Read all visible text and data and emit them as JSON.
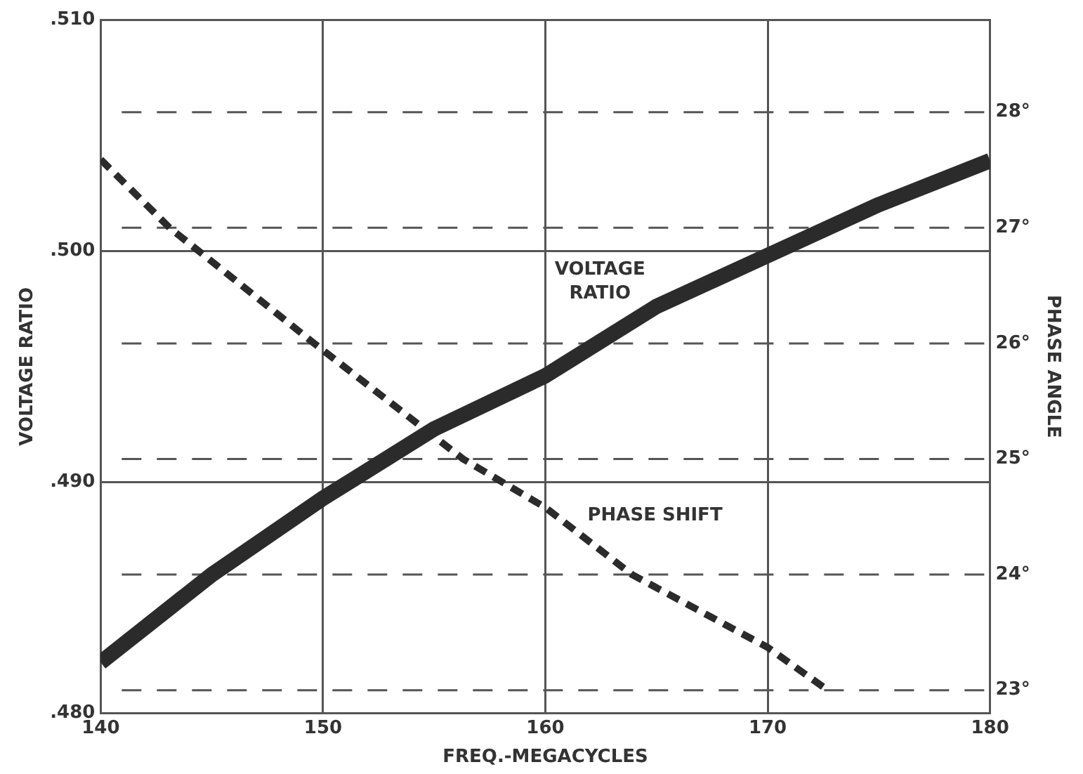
{
  "chart_data": {
    "type": "line",
    "xlabel": "FREQ.-MEGACYCLES",
    "ylabel": "VOLTAGE RATIO",
    "y2label": "PHASE ANGLE",
    "series": [
      {
        "name": "VOLTAGE RATIO",
        "color": "#2b2b2b",
        "x": [
          140,
          145,
          150,
          155,
          160,
          165,
          170,
          175,
          180
        ],
        "values": [
          0.4822,
          0.486,
          0.4893,
          0.4923,
          0.4946,
          0.4976,
          0.4998,
          0.502,
          0.5039
        ],
        "line_style": "solid"
      },
      {
        "name": "PHASE SHIFT",
        "color": "#2b2b2b",
        "axis": "y2",
        "x": [
          140,
          143.1,
          149.6,
          156.3,
          160,
          163.9,
          170,
          172.7
        ],
        "values": [
          27.59,
          27,
          26,
          25,
          24.58,
          24,
          23.37,
          23.0
        ],
        "line_style": "dashed"
      }
    ],
    "xlim": [
      140,
      180
    ],
    "xticks": [
      140,
      150,
      160,
      170,
      180
    ],
    "ylim": [
      0.48,
      0.51
    ],
    "yticks": [
      {
        "value": 0.48,
        "label": ".480"
      },
      {
        "value": 0.49,
        "label": ".490"
      },
      {
        "value": 0.5,
        "label": ".500"
      },
      {
        "value": 0.51,
        "label": ".510"
      }
    ],
    "y2lim": [
      22.8,
      28.8
    ],
    "y2ticks": [
      {
        "value": 23,
        "label": "23°"
      },
      {
        "value": 24,
        "label": "24°"
      },
      {
        "value": 25,
        "label": "25°"
      },
      {
        "value": 26,
        "label": "26°"
      },
      {
        "value": 27,
        "label": "27°"
      },
      {
        "value": 28,
        "label": "28°"
      }
    ],
    "grid": true,
    "legend": false,
    "marker": "none"
  }
}
